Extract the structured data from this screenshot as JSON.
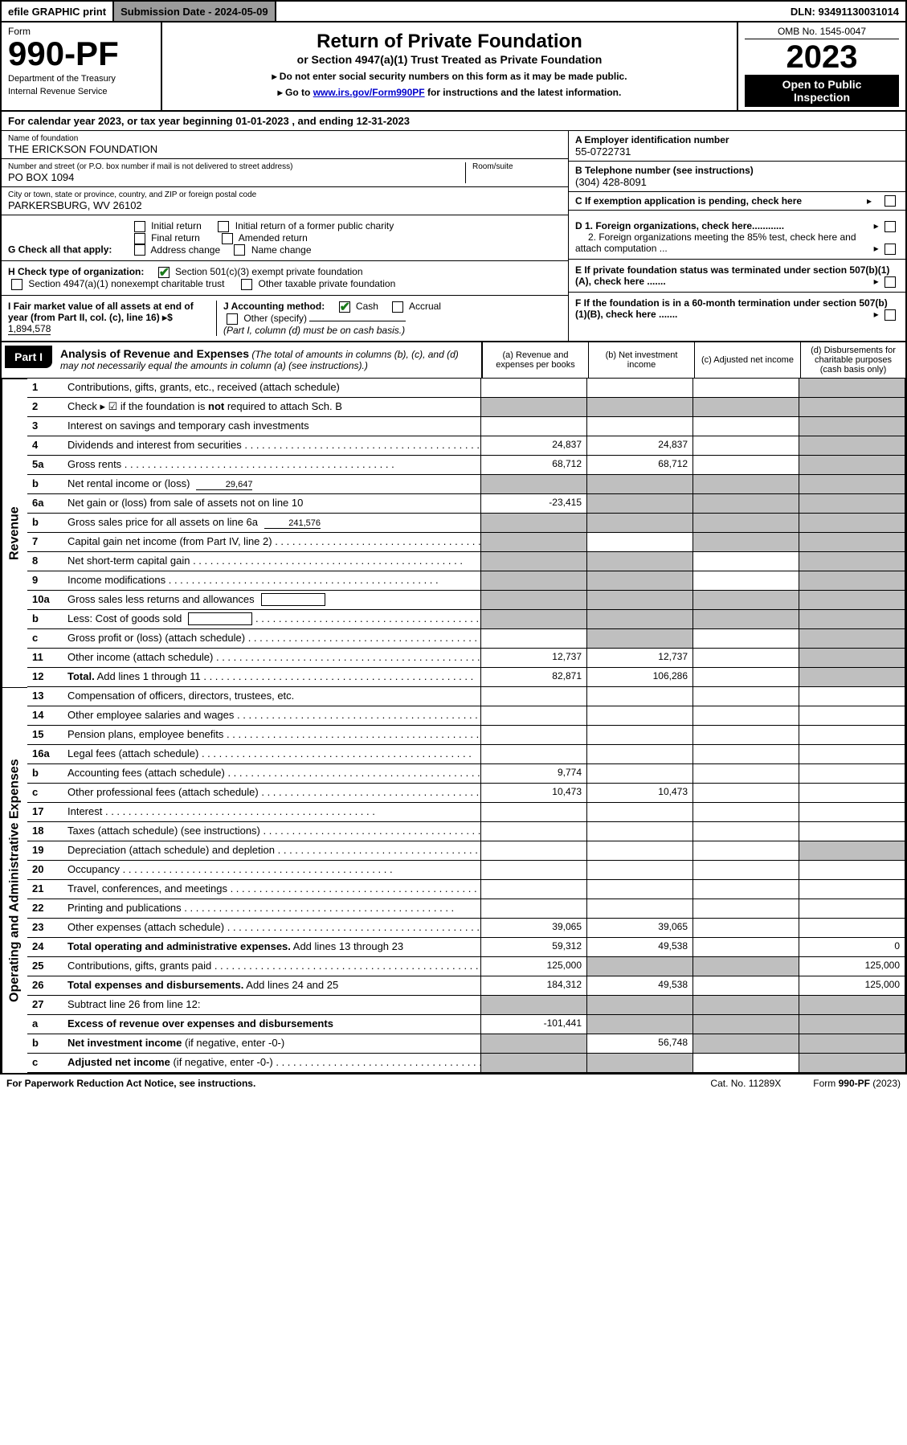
{
  "colors": {
    "black": "#000000",
    "white": "#ffffff",
    "link": "#0000cc",
    "shade": "#bfbfbf",
    "topbar_grey": "#9b9b9b",
    "check_green": "#1a7a1a"
  },
  "topbar": {
    "efile": "efile GRAPHIC print",
    "sub_label": "Submission Date - 2024-05-09",
    "dln": "DLN: 93491130031014"
  },
  "header": {
    "form_label": "Form",
    "form_num": "990-PF",
    "dept1": "Department of the Treasury",
    "dept2": "Internal Revenue Service",
    "title": "Return of Private Foundation",
    "subtitle": "or Section 4947(a)(1) Trust Treated as Private Foundation",
    "note1": "▸ Do not enter social security numbers on this form as it may be made public.",
    "note2_pre": "▸ Go to ",
    "note2_link": "www.irs.gov/Form990PF",
    "note2_post": " for instructions and the latest information.",
    "omb": "OMB No. 1545-0047",
    "year": "2023",
    "open1": "Open to Public",
    "open2": "Inspection"
  },
  "calyear": "For calendar year 2023, or tax year beginning 01-01-2023             , and ending 12-31-2023",
  "info": {
    "name_label": "Name of foundation",
    "name": "THE ERICKSON FOUNDATION",
    "addr_label": "Number and street (or P.O. box number if mail is not delivered to street address)",
    "addr": "PO BOX 1094",
    "room_label": "Room/suite",
    "city_label": "City or town, state or province, country, and ZIP or foreign postal code",
    "city": "PARKERSBURG, WV  26102",
    "A_label": "A Employer identification number",
    "A_val": "55-0722731",
    "B_label": "B Telephone number (see instructions)",
    "B_val": "(304) 428-8091",
    "C_label": "C If exemption application is pending, check here"
  },
  "G": {
    "label": "G Check all that apply:",
    "opts": [
      "Initial return",
      "Initial return of a former public charity",
      "Final return",
      "Amended return",
      "Address change",
      "Name change"
    ]
  },
  "H": {
    "label": "H Check type of organization:",
    "opt1": "Section 501(c)(3) exempt private foundation",
    "opt2": "Section 4947(a)(1) nonexempt charitable trust",
    "opt3": "Other taxable private foundation"
  },
  "I": {
    "label": "I Fair market value of all assets at end of year (from Part II, col. (c), line 16) ▸$",
    "val": "1,894,578"
  },
  "J": {
    "label": "J Accounting method:",
    "cash": "Cash",
    "accrual": "Accrual",
    "other": "Other (specify)",
    "note": "(Part I, column (d) must be on cash basis.)"
  },
  "right": {
    "D1": "D 1. Foreign organizations, check here............",
    "D2": "2. Foreign organizations meeting the 85% test, check here and attach computation ...",
    "E": "E  If private foundation status was terminated under section 507(b)(1)(A), check here .......",
    "F": "F  If the foundation is in a 60-month termination under section 507(b)(1)(B), check here .......",
    "arrow": "▸"
  },
  "part1": {
    "tag": "Part I",
    "title": "Analysis of Revenue and Expenses",
    "sub": "(The total of amounts in columns (b), (c), and (d) may not necessarily equal the amounts in column (a) (see instructions).)",
    "cols": {
      "a": "(a)  Revenue and expenses per books",
      "b": "(b)  Net investment income",
      "c": "(c)  Adjusted net income",
      "d": "(d)  Disbursements for charitable purposes (cash basis only)"
    }
  },
  "sides": {
    "rev": "Revenue",
    "exp": "Operating and Administrative Expenses"
  },
  "rows": [
    {
      "ln": "1",
      "desc": "Contributions, gifts, grants, etc., received (attach schedule)",
      "wrap": true,
      "a": "",
      "b": "",
      "c": "",
      "d": "s"
    },
    {
      "ln": "2",
      "desc": "Check ▸ ☑ if the foundation is <b>not</b> required to attach Sch. B",
      "wrap": true,
      "dots": true,
      "a": "s",
      "b": "s",
      "c": "s",
      "d": "s"
    },
    {
      "ln": "3",
      "desc": "Interest on savings and temporary cash investments",
      "a": "",
      "b": "",
      "c": "",
      "d": "s"
    },
    {
      "ln": "4",
      "desc": "Dividends and interest from securities",
      "dots": true,
      "a": "24,837",
      "b": "24,837",
      "c": "",
      "d": "s"
    },
    {
      "ln": "5a",
      "desc": "Gross rents",
      "dots": true,
      "a": "68,712",
      "b": "68,712",
      "c": "",
      "d": "s"
    },
    {
      "ln": "b",
      "desc": "Net rental income or (loss)",
      "inline": "29,647",
      "a": "s",
      "b": "s",
      "c": "s",
      "d": "s"
    },
    {
      "ln": "6a",
      "desc": "Net gain or (loss) from sale of assets not on line 10",
      "a": "-23,415",
      "b": "s",
      "c": "s",
      "d": "s"
    },
    {
      "ln": "b",
      "desc": "Gross sales price for all assets on line 6a",
      "inline": "241,576",
      "a": "s",
      "b": "s",
      "c": "s",
      "d": "s"
    },
    {
      "ln": "7",
      "desc": "Capital gain net income (from Part IV, line 2)",
      "dots": true,
      "a": "s",
      "b": "",
      "c": "s",
      "d": "s"
    },
    {
      "ln": "8",
      "desc": "Net short-term capital gain",
      "dots": true,
      "a": "s",
      "b": "s",
      "c": "",
      "d": "s"
    },
    {
      "ln": "9",
      "desc": "Income modifications",
      "dots": true,
      "a": "s",
      "b": "s",
      "c": "",
      "d": "s"
    },
    {
      "ln": "10a",
      "desc": "Gross sales less returns and allowances",
      "box": true,
      "a": "s",
      "b": "s",
      "c": "s",
      "d": "s"
    },
    {
      "ln": "b",
      "desc": "Less: Cost of goods sold",
      "dots": true,
      "box": true,
      "a": "s",
      "b": "s",
      "c": "s",
      "d": "s"
    },
    {
      "ln": "c",
      "desc": "Gross profit or (loss) (attach schedule)",
      "dots": true,
      "a": "",
      "b": "s",
      "c": "",
      "d": "s"
    },
    {
      "ln": "11",
      "desc": "Other income (attach schedule)",
      "dots": true,
      "a": "12,737",
      "b": "12,737",
      "c": "",
      "d": "s"
    },
    {
      "ln": "12",
      "desc": "<b>Total.</b> Add lines 1 through 11",
      "dots": true,
      "a": "82,871",
      "b": "106,286",
      "c": "",
      "d": "s"
    },
    {
      "ln": "13",
      "desc": "Compensation of officers, directors, trustees, etc.",
      "a": "",
      "b": "",
      "c": "",
      "d": ""
    },
    {
      "ln": "14",
      "desc": "Other employee salaries and wages",
      "dots": true,
      "a": "",
      "b": "",
      "c": "",
      "d": ""
    },
    {
      "ln": "15",
      "desc": "Pension plans, employee benefits",
      "dots": true,
      "a": "",
      "b": "",
      "c": "",
      "d": ""
    },
    {
      "ln": "16a",
      "desc": "Legal fees (attach schedule)",
      "dots": true,
      "a": "",
      "b": "",
      "c": "",
      "d": ""
    },
    {
      "ln": "b",
      "desc": "Accounting fees (attach schedule)",
      "dots": true,
      "a": "9,774",
      "b": "",
      "c": "",
      "d": ""
    },
    {
      "ln": "c",
      "desc": "Other professional fees (attach schedule)",
      "dots": true,
      "a": "10,473",
      "b": "10,473",
      "c": "",
      "d": ""
    },
    {
      "ln": "17",
      "desc": "Interest",
      "dots": true,
      "a": "",
      "b": "",
      "c": "",
      "d": ""
    },
    {
      "ln": "18",
      "desc": "Taxes (attach schedule) (see instructions)",
      "dots": true,
      "a": "",
      "b": "",
      "c": "",
      "d": ""
    },
    {
      "ln": "19",
      "desc": "Depreciation (attach schedule) and depletion",
      "dots": true,
      "a": "",
      "b": "",
      "c": "",
      "d": "s"
    },
    {
      "ln": "20",
      "desc": "Occupancy",
      "dots": true,
      "a": "",
      "b": "",
      "c": "",
      "d": ""
    },
    {
      "ln": "21",
      "desc": "Travel, conferences, and meetings",
      "dots": true,
      "a": "",
      "b": "",
      "c": "",
      "d": ""
    },
    {
      "ln": "22",
      "desc": "Printing and publications",
      "dots": true,
      "a": "",
      "b": "",
      "c": "",
      "d": ""
    },
    {
      "ln": "23",
      "desc": "Other expenses (attach schedule)",
      "dots": true,
      "a": "39,065",
      "b": "39,065",
      "c": "",
      "d": ""
    },
    {
      "ln": "24",
      "desc": "<b>Total operating and administrative expenses.</b> Add lines 13 through 23",
      "wrap": true,
      "dots": true,
      "a": "59,312",
      "b": "49,538",
      "c": "",
      "d": "0"
    },
    {
      "ln": "25",
      "desc": "Contributions, gifts, grants paid",
      "dots": true,
      "a": "125,000",
      "b": "s",
      "c": "s",
      "d": "125,000"
    },
    {
      "ln": "26",
      "desc": "<b>Total expenses and disbursements.</b> Add lines 24 and 25",
      "wrap": true,
      "a": "184,312",
      "b": "49,538",
      "c": "",
      "d": "125,000"
    },
    {
      "ln": "27",
      "desc": "Subtract line 26 from line 12:",
      "a": "s",
      "b": "s",
      "c": "s",
      "d": "s"
    },
    {
      "ln": "a",
      "desc": "<b>Excess of revenue over expenses and disbursements</b>",
      "wrap": true,
      "a": "-101,441",
      "b": "s",
      "c": "s",
      "d": "s"
    },
    {
      "ln": "b",
      "desc": "<b>Net investment income</b> (if negative, enter -0-)",
      "a": "s",
      "b": "56,748",
      "c": "s",
      "d": "s"
    },
    {
      "ln": "c",
      "desc": "<b>Adjusted net income</b> (if negative, enter -0-)",
      "dots": true,
      "a": "s",
      "b": "s",
      "c": "",
      "d": "s"
    }
  ],
  "footer": {
    "left": "For Paperwork Reduction Act Notice, see instructions.",
    "mid": "Cat. No. 11289X",
    "right": "Form 990-PF (2023)"
  }
}
